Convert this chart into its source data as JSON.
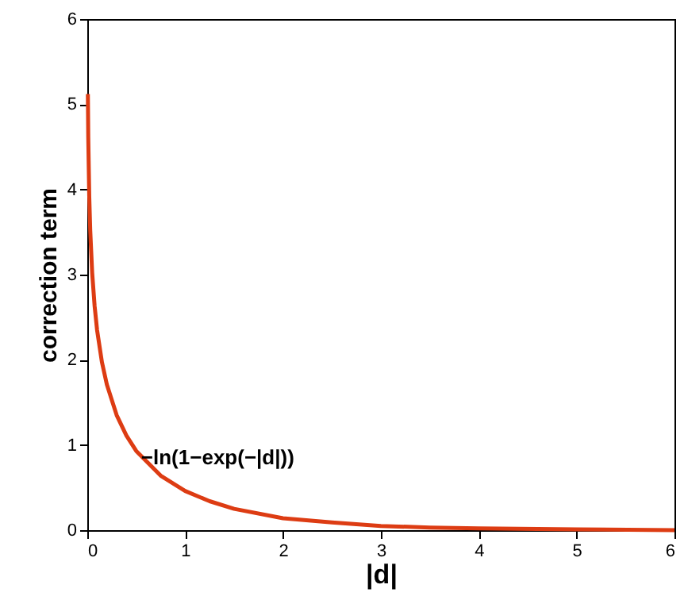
{
  "chart_data": {
    "type": "line",
    "xlabel": "|d|",
    "ylabel": "correction term",
    "x": [
      0.006,
      0.01,
      0.02,
      0.03,
      0.05,
      0.075,
      0.1,
      0.15,
      0.2,
      0.3,
      0.4,
      0.5,
      0.75,
      1,
      1.25,
      1.5,
      2,
      2.5,
      3,
      3.5,
      4,
      5,
      6
    ],
    "series": [
      {
        "color": "#dd3c13",
        "values": [
          5.12,
          4.61,
          3.92,
          3.52,
          3.02,
          2.63,
          2.35,
          1.97,
          1.71,
          1.35,
          1.11,
          0.93,
          0.64,
          0.46,
          0.34,
          0.25,
          0.14,
          0.09,
          0.05,
          0.03,
          0.02,
          0.01,
          0.0
        ]
      }
    ],
    "xlim": [
      0,
      6
    ],
    "ylim": [
      0,
      6
    ],
    "xticks": [
      0,
      1,
      2,
      3,
      4,
      5,
      6
    ],
    "yticks": [
      0,
      1,
      2,
      3,
      4,
      5,
      6
    ],
    "grid": false,
    "marker": "none",
    "line_style": "solid",
    "annotations": [
      {
        "text": "−ln(1−exp(−|d|))",
        "x": 0.55,
        "y": 0.85
      }
    ]
  }
}
